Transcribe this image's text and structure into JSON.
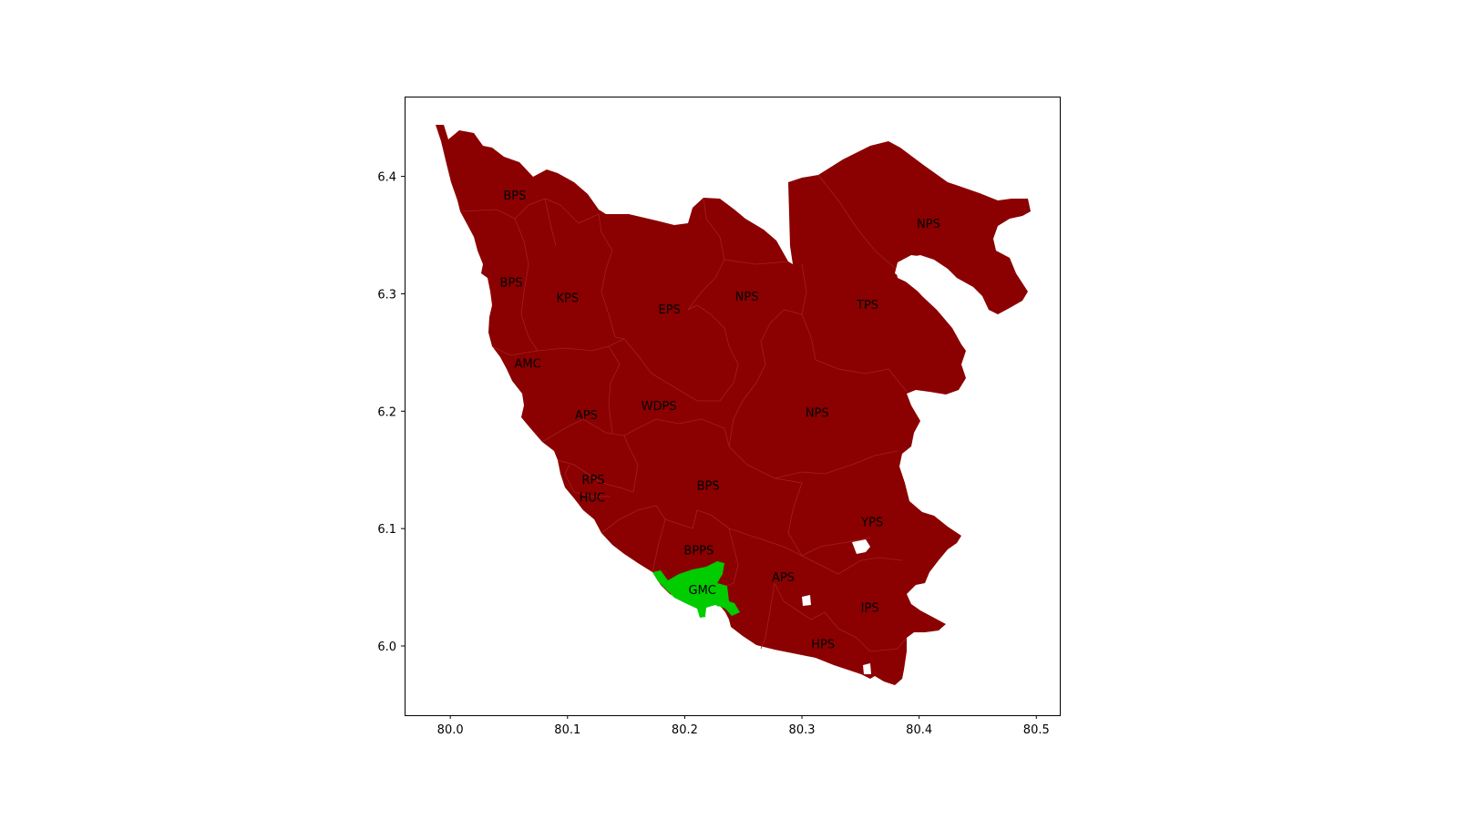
{
  "chart_data": {
    "type": "choropleth-map",
    "title": "",
    "xlabel": "",
    "ylabel": "",
    "xlim": [
      79.961,
      80.52
    ],
    "ylim": [
      5.941,
      6.468
    ],
    "xticks": [
      "80.0",
      "80.1",
      "80.2",
      "80.3",
      "80.4",
      "80.5"
    ],
    "yticks": [
      "6.0",
      "6.1",
      "6.2",
      "6.3",
      "6.4"
    ],
    "grid": false,
    "legend": "none",
    "colors": {
      "default_region": "#8b0000",
      "highlight_region": "#00cc00",
      "boundary": "#a32020"
    },
    "highlighted": "GMC",
    "regions": [
      {
        "label": "BPS",
        "lon": 80.055,
        "lat": 6.384
      },
      {
        "label": "BPS",
        "lon": 80.052,
        "lat": 6.31
      },
      {
        "label": "KPS",
        "lon": 80.1,
        "lat": 6.297
      },
      {
        "label": "EPS",
        "lon": 80.187,
        "lat": 6.287
      },
      {
        "label": "NPS",
        "lon": 80.253,
        "lat": 6.298
      },
      {
        "label": "NPS",
        "lon": 80.408,
        "lat": 6.36
      },
      {
        "label": "TPS",
        "lon": 80.356,
        "lat": 6.291
      },
      {
        "label": "AMC",
        "lon": 80.066,
        "lat": 6.241
      },
      {
        "label": "APS",
        "lon": 80.116,
        "lat": 6.197
      },
      {
        "label": "WDPS",
        "lon": 80.178,
        "lat": 6.205
      },
      {
        "label": "NPS",
        "lon": 80.313,
        "lat": 6.199
      },
      {
        "label": "RPS",
        "lon": 80.122,
        "lat": 6.142
      },
      {
        "label": "HUC",
        "lon": 80.121,
        "lat": 6.127
      },
      {
        "label": "BPS",
        "lon": 80.22,
        "lat": 6.137
      },
      {
        "label": "YPS",
        "lon": 80.36,
        "lat": 6.106
      },
      {
        "label": "BPPS",
        "lon": 80.212,
        "lat": 6.082
      },
      {
        "label": "APS",
        "lon": 80.284,
        "lat": 6.059
      },
      {
        "label": "GMC",
        "lon": 80.215,
        "lat": 6.048
      },
      {
        "label": "IPS",
        "lon": 80.358,
        "lat": 6.033
      },
      {
        "label": "HPS",
        "lon": 80.318,
        "lat": 6.002
      }
    ]
  }
}
